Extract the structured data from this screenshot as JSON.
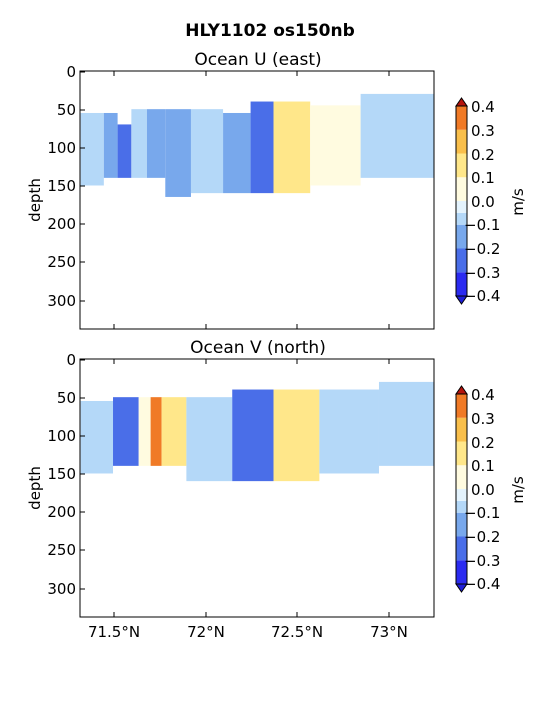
{
  "figure_title": "HLY1102 os150nb",
  "colors": {
    "levels": [
      "#2b2bf0",
      "#4a6ee8",
      "#78a8ec",
      "#b4d8f8",
      "#e4f3fd",
      "#fffbe0",
      "#ffe78a",
      "#f9bf4b",
      "#f07a26",
      "#d92612"
    ],
    "neg_under": "#1f1fd8",
    "pos_over": "#b5140d"
  },
  "chart_data": [
    {
      "type": "heatmap",
      "title": "Ocean U (east)",
      "ylabel": "depth",
      "xlabel": "",
      "x_ticks": [
        "71.5°N",
        "72°N",
        "72.5°N",
        "73°N"
      ],
      "x_tick_values": [
        71.5,
        72.0,
        72.5,
        73.0
      ],
      "xlim": [
        71.32,
        73.25
      ],
      "y_ticks": [
        "0",
        "50",
        "100",
        "150",
        "200",
        "250",
        "300"
      ],
      "y_tick_values": [
        0,
        50,
        100,
        150,
        200,
        250,
        300
      ],
      "ylim": [
        338,
        0
      ],
      "colorbar": {
        "label": "m/s",
        "ticks": [
          "0.4",
          "0.3",
          "0.2",
          "0.1",
          "0.0",
          "−0.1",
          "−0.2",
          "−0.3",
          "−0.4"
        ],
        "levels": [
          -0.4,
          -0.3,
          -0.2,
          -0.1,
          -0.05,
          0.0,
          0.1,
          0.2,
          0.3,
          0.4
        ]
      },
      "columns": [
        {
          "lat": 71.4,
          "top": 55,
          "bottom": 150,
          "u": -0.06
        },
        {
          "lat": 71.5,
          "top": 55,
          "bottom": 140,
          "u": -0.12
        },
        {
          "lat": 71.55,
          "top": 70,
          "bottom": 140,
          "u": -0.22
        },
        {
          "lat": 71.65,
          "top": 50,
          "bottom": 140,
          "u": -0.08
        },
        {
          "lat": 71.72,
          "top": 50,
          "bottom": 140,
          "u": -0.18
        },
        {
          "lat": 71.85,
          "top": 50,
          "bottom": 165,
          "u": -0.2
        },
        {
          "lat": 72.0,
          "top": 50,
          "bottom": 160,
          "u": -0.07
        },
        {
          "lat": 72.2,
          "top": 55,
          "bottom": 160,
          "u": -0.13
        },
        {
          "lat": 72.3,
          "top": 40,
          "bottom": 160,
          "u": -0.22
        },
        {
          "lat": 72.45,
          "top": 40,
          "bottom": 160,
          "u": 0.17
        },
        {
          "lat": 72.7,
          "top": 45,
          "bottom": 150,
          "u": 0.03
        },
        {
          "lat": 73.0,
          "top": 30,
          "bottom": 140,
          "u": -0.07
        }
      ]
    },
    {
      "type": "heatmap",
      "title": "Ocean V (north)",
      "ylabel": "depth",
      "xlabel": "",
      "x_ticks": [
        "71.5°N",
        "72°N",
        "72.5°N",
        "73°N"
      ],
      "x_tick_values": [
        71.5,
        72.0,
        72.5,
        73.0
      ],
      "xlim": [
        71.32,
        73.25
      ],
      "y_ticks": [
        "0",
        "50",
        "100",
        "150",
        "200",
        "250",
        "300"
      ],
      "y_tick_values": [
        0,
        50,
        100,
        150,
        200,
        250,
        300
      ],
      "ylim": [
        338,
        0
      ],
      "colorbar": {
        "label": "m/s",
        "ticks": [
          "0.4",
          "0.3",
          "0.2",
          "0.1",
          "0.0",
          "−0.1",
          "−0.2",
          "−0.3",
          "−0.4"
        ],
        "levels": [
          -0.4,
          -0.3,
          -0.2,
          -0.1,
          -0.05,
          0.0,
          0.1,
          0.2,
          0.3,
          0.4
        ]
      },
      "columns": [
        {
          "lat": 71.4,
          "top": 55,
          "bottom": 150,
          "v": -0.08
        },
        {
          "lat": 71.6,
          "top": 50,
          "bottom": 140,
          "v": -0.3
        },
        {
          "lat": 71.68,
          "top": 50,
          "bottom": 140,
          "v": 0.0
        },
        {
          "lat": 71.73,
          "top": 50,
          "bottom": 140,
          "v": 0.35
        },
        {
          "lat": 71.8,
          "top": 50,
          "bottom": 140,
          "v": 0.18
        },
        {
          "lat": 72.0,
          "top": 50,
          "bottom": 160,
          "v": -0.07
        },
        {
          "lat": 72.3,
          "top": 40,
          "bottom": 160,
          "v": -0.22
        },
        {
          "lat": 72.45,
          "top": 40,
          "bottom": 160,
          "v": 0.17
        },
        {
          "lat": 72.8,
          "top": 40,
          "bottom": 150,
          "v": -0.07
        },
        {
          "lat": 73.1,
          "top": 30,
          "bottom": 140,
          "v": -0.08
        }
      ]
    }
  ]
}
